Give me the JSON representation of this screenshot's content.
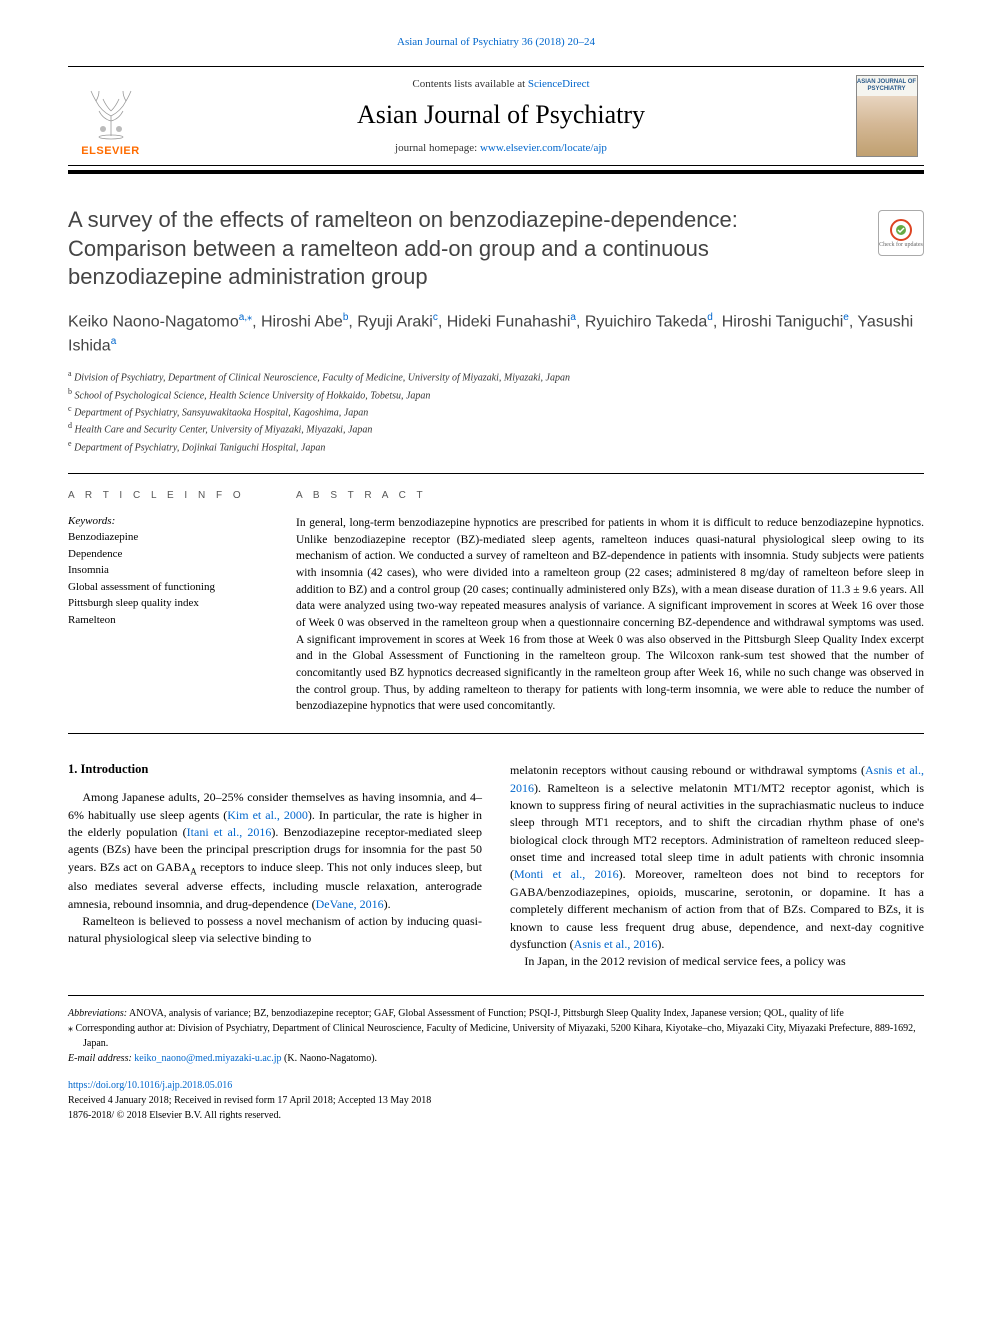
{
  "runningHeader": "Asian Journal of Psychiatry 36 (2018) 20–24",
  "banner": {
    "contentsPrefix": "Contents lists available at ",
    "contentsLink": "ScienceDirect",
    "journalTitle": "Asian Journal of Psychiatry",
    "homepagePrefix": "journal homepage: ",
    "homepageLink": "www.elsevier.com/locate/ajp",
    "elsevierWordmark": "ELSEVIER",
    "coverLabel": "ASIAN JOURNAL OF PSYCHIATRY"
  },
  "colors": {
    "link": "#0066cc",
    "elsevierOrange": "#ff6c00",
    "text": "#000000",
    "headingGray": "#444444"
  },
  "article": {
    "title": "A survey of the effects of ramelteon on benzodiazepine-dependence: Comparison between a ramelteon add-on group and a continuous benzodiazepine administration group",
    "crossmarkLabel": "Check for updates",
    "authorsHtml": "Keiko Naono-Nagatomo<span class='sup'>a,</span><span class='sup'>⁎</span>, Hiroshi Abe<span class='sup'>b</span>, Ryuji Araki<span class='sup'>c</span>, Hideki Funahashi<span class='sup'>a</span>, Ryuichiro Takeda<span class='sup'>d</span>, Hiroshi Taniguchi<span class='sup'>e</span>, Yasushi Ishida<span class='sup'>a</span>",
    "affiliations": [
      {
        "tag": "a",
        "text": "Division of Psychiatry, Department of Clinical Neuroscience, Faculty of Medicine, University of Miyazaki, Miyazaki, Japan"
      },
      {
        "tag": "b",
        "text": "School of Psychological Science, Health Science University of Hokkaido, Tobetsu, Japan"
      },
      {
        "tag": "c",
        "text": "Department of Psychiatry, Sansyuwakitaoka Hospital, Kagoshima, Japan"
      },
      {
        "tag": "d",
        "text": "Health Care and Security Center, University of Miyazaki, Miyazaki, Japan"
      },
      {
        "tag": "e",
        "text": "Department of Psychiatry, Dojinkai Taniguchi Hospital, Japan"
      }
    ]
  },
  "articleInfo": {
    "heading": "A R T I C L E  I N F O",
    "keywordsLabel": "Keywords:",
    "keywords": [
      "Benzodiazepine",
      "Dependence",
      "Insomnia",
      "Global assessment of functioning",
      "Pittsburgh sleep quality index",
      "Ramelteon"
    ]
  },
  "abstract": {
    "heading": "A B S T R A C T",
    "text": "In general, long-term benzodiazepine hypnotics are prescribed for patients in whom it is difficult to reduce benzodiazepine hypnotics. Unlike benzodiazepine receptor (BZ)-mediated sleep agents, ramelteon induces quasi-natural physiological sleep owing to its mechanism of action. We conducted a survey of ramelteon and BZ-dependence in patients with insomnia. Study subjects were patients with insomnia (42 cases), who were divided into a ramelteon group (22 cases; administered 8 mg/day of ramelteon before sleep in addition to BZ) and a control group (20 cases; continually administered only BZs), with a mean disease duration of 11.3 ± 9.6 years. All data were analyzed using two-way repeated measures analysis of variance. A significant improvement in scores at Week 16 over those of Week 0 was observed in the ramelteon group when a questionnaire concerning BZ-dependence and withdrawal symptoms was used. A significant improvement in scores at Week 16 from those at Week 0 was also observed in the Pittsburgh Sleep Quality Index excerpt and in the Global Assessment of Functioning in the ramelteon group. The Wilcoxon rank-sum test showed that the number of concomitantly used BZ hypnotics decreased significantly in the ramelteon group after Week 16, while no such change was observed in the control group. Thus, by adding ramelteon to therapy for patients with long-term insomnia, we were able to reduce the number of benzodiazepine hypnotics that were used concomitantly."
  },
  "body": {
    "introHeading": "1. Introduction",
    "col1": {
      "p1_a": "Among Japanese adults, 20–25% consider themselves as having insomnia, and 4–6% habitually use sleep agents (",
      "p1_link1": "Kim et al., 2000",
      "p1_b": "). In particular, the rate is higher in the elderly population (",
      "p1_link2": "Itani et al., 2016",
      "p1_c": "). Benzodiazepine receptor-mediated sleep agents (BZs) have been the principal prescription drugs for insomnia for the past 50 years. BZs act on GABA",
      "p1_sub": "A",
      "p1_d": " receptors to induce sleep. This not only induces sleep, but also mediates several adverse effects, including muscle relaxation, anterograde amnesia, rebound insomnia, and drug-dependence (",
      "p1_link3": "DeVane, 2016",
      "p1_e": ").",
      "p2": "Ramelteon is believed to possess a novel mechanism of action by inducing quasi-natural physiological sleep via selective binding to"
    },
    "col2": {
      "p1_a": "melatonin receptors without causing rebound or withdrawal symptoms (",
      "p1_link1": "Asnis et al., 2016",
      "p1_b": "). Ramelteon is a selective melatonin MT1/MT2 receptor agonist, which is known to suppress firing of neural activities in the suprachiasmatic nucleus to induce sleep through MT1 receptors, and to shift the circadian rhythm phase of one's biological clock through MT2 receptors. Administration of ramelteon reduced sleep-onset time and increased total sleep time in adult patients with chronic insomnia (",
      "p1_link2": "Monti et al., 2016",
      "p1_c": "). Moreover, ramelteon does not bind to receptors for GABA/benzodiazepines, opioids, muscarine, serotonin, or dopamine. It has a completely different mechanism of action from that of BZs. Compared to BZs, it is known to cause less frequent drug abuse, dependence, and next-day cognitive dysfunction (",
      "p1_link3": "Asnis et al., 2016",
      "p1_d": ").",
      "p2": "In Japan, in the 2012 revision of medical service fees, a policy was"
    }
  },
  "footer": {
    "abbrevLabel": "Abbreviations:",
    "abbrevText": " ANOVA, analysis of variance; BZ, benzodiazepine receptor; GAF, Global Assessment of Function; PSQI-J, Pittsburgh Sleep Quality Index, Japanese version; QOL, quality of life",
    "corresponding": "⁎ Corresponding author at: Division of Psychiatry, Department of Clinical Neuroscience, Faculty of Medicine, University of Miyazaki, 5200 Kihara, Kiyotake–cho, Miyazaki City, Miyazaki Prefecture, 889-1692, Japan.",
    "emailLabel": "E-mail address: ",
    "email": "keiko_naono@med.miyazaki-u.ac.jp",
    "emailPerson": " (K. Naono-Nagatomo).",
    "doi": "https://doi.org/10.1016/j.ajp.2018.05.016",
    "received": "Received 4 January 2018; Received in revised form 17 April 2018; Accepted 13 May 2018",
    "issn": "1876-2018/ © 2018 Elsevier B.V. All rights reserved."
  }
}
